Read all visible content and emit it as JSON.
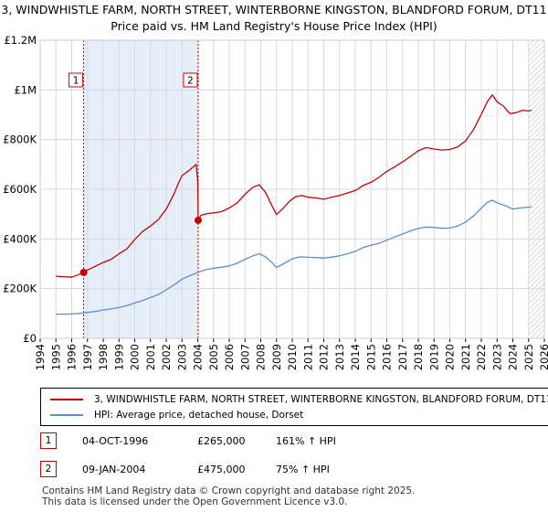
{
  "title_line1": "3, WINDWHISTLE FARM, NORTH STREET, WINTERBORNE KINGSTON, BLANDFORD FORUM, DT11",
  "title_line2": "Price paid vs. HM Land Registry's House Price Index (HPI)",
  "colors": {
    "property": "#cc0000",
    "hpi": "#5b8fc9",
    "shade": "#e6eefa",
    "grid": "#d9d9d9"
  },
  "chart_data": {
    "type": "line",
    "xlim": [
      1994,
      2026
    ],
    "ylim": [
      0,
      1200000
    ],
    "yticks": [
      {
        "value": 0,
        "label": "£0"
      },
      {
        "value": 200000,
        "label": "£200K"
      },
      {
        "value": 400000,
        "label": "£400K"
      },
      {
        "value": 600000,
        "label": "£600K"
      },
      {
        "value": 800000,
        "label": "£800K"
      },
      {
        "value": 1000000,
        "label": "£1M"
      },
      {
        "value": 1200000,
        "label": "£1.2M"
      }
    ],
    "xticks": [
      1994,
      1995,
      1996,
      1997,
      1998,
      1999,
      2000,
      2001,
      2002,
      2003,
      2004,
      2005,
      2006,
      2007,
      2008,
      2009,
      2010,
      2011,
      2012,
      2013,
      2014,
      2015,
      2016,
      2017,
      2018,
      2019,
      2020,
      2021,
      2022,
      2023,
      2024,
      2025,
      2026
    ],
    "shaded_range": [
      1996.76,
      2004.03
    ],
    "hatched_from": 2025.0,
    "series": [
      {
        "name": "3, WINDWHISTLE FARM, NORTH STREET, WINTERBORNE KINGSTON, BLANDFORD FORUM, DT11",
        "color": "#cc0000",
        "points": [
          [
            1995.0,
            250000
          ],
          [
            1995.5,
            248000
          ],
          [
            1996.0,
            246000
          ],
          [
            1996.4,
            255000
          ],
          [
            1996.76,
            265000
          ],
          [
            1997.0,
            275000
          ],
          [
            1997.5,
            290000
          ],
          [
            1998.0,
            305000
          ],
          [
            1998.5,
            318000
          ],
          [
            1999.0,
            340000
          ],
          [
            1999.5,
            360000
          ],
          [
            2000.0,
            398000
          ],
          [
            2000.5,
            430000
          ],
          [
            2001.0,
            452000
          ],
          [
            2001.5,
            478000
          ],
          [
            2002.0,
            520000
          ],
          [
            2002.5,
            582000
          ],
          [
            2002.8,
            628000
          ],
          [
            2003.0,
            655000
          ],
          [
            2003.5,
            678000
          ],
          [
            2003.9,
            700000
          ],
          [
            2004.0,
            632000
          ],
          [
            2004.03,
            475000
          ],
          [
            2004.2,
            495000
          ],
          [
            2004.6,
            502000
          ],
          [
            2005.0,
            505000
          ],
          [
            2005.5,
            510000
          ],
          [
            2006.0,
            525000
          ],
          [
            2006.5,
            545000
          ],
          [
            2007.0,
            580000
          ],
          [
            2007.5,
            608000
          ],
          [
            2007.9,
            618000
          ],
          [
            2008.3,
            588000
          ],
          [
            2008.7,
            535000
          ],
          [
            2009.0,
            498000
          ],
          [
            2009.4,
            522000
          ],
          [
            2009.8,
            550000
          ],
          [
            2010.2,
            570000
          ],
          [
            2010.6,
            575000
          ],
          [
            2011.0,
            568000
          ],
          [
            2011.5,
            565000
          ],
          [
            2012.0,
            560000
          ],
          [
            2012.5,
            568000
          ],
          [
            2013.0,
            575000
          ],
          [
            2013.5,
            585000
          ],
          [
            2014.0,
            595000
          ],
          [
            2014.5,
            615000
          ],
          [
            2015.0,
            628000
          ],
          [
            2015.5,
            648000
          ],
          [
            2016.0,
            672000
          ],
          [
            2016.5,
            690000
          ],
          [
            2017.0,
            710000
          ],
          [
            2017.5,
            732000
          ],
          [
            2018.0,
            755000
          ],
          [
            2018.5,
            768000
          ],
          [
            2019.0,
            762000
          ],
          [
            2019.5,
            758000
          ],
          [
            2020.0,
            760000
          ],
          [
            2020.5,
            770000
          ],
          [
            2021.0,
            795000
          ],
          [
            2021.5,
            840000
          ],
          [
            2022.0,
            902000
          ],
          [
            2022.4,
            955000
          ],
          [
            2022.7,
            980000
          ],
          [
            2023.0,
            952000
          ],
          [
            2023.4,
            935000
          ],
          [
            2023.8,
            905000
          ],
          [
            2024.2,
            908000
          ],
          [
            2024.6,
            918000
          ],
          [
            2025.0,
            915000
          ],
          [
            2025.2,
            918000
          ]
        ]
      },
      {
        "name": "HPI: Average price, detached house, Dorset",
        "color": "#5b8fc9",
        "points": [
          [
            1995.0,
            97000
          ],
          [
            1995.5,
            97000
          ],
          [
            1996.0,
            98000
          ],
          [
            1996.5,
            100000
          ],
          [
            1997.0,
            104000
          ],
          [
            1997.5,
            108000
          ],
          [
            1998.0,
            114000
          ],
          [
            1998.5,
            118000
          ],
          [
            1999.0,
            124000
          ],
          [
            1999.5,
            131000
          ],
          [
            2000.0,
            142000
          ],
          [
            2000.5,
            152000
          ],
          [
            2001.0,
            164000
          ],
          [
            2001.5,
            176000
          ],
          [
            2002.0,
            195000
          ],
          [
            2002.5,
            215000
          ],
          [
            2003.0,
            238000
          ],
          [
            2003.5,
            252000
          ],
          [
            2004.0,
            265000
          ],
          [
            2004.5,
            276000
          ],
          [
            2005.0,
            282000
          ],
          [
            2005.5,
            286000
          ],
          [
            2006.0,
            292000
          ],
          [
            2006.5,
            302000
          ],
          [
            2007.0,
            318000
          ],
          [
            2007.5,
            332000
          ],
          [
            2007.9,
            340000
          ],
          [
            2008.3,
            328000
          ],
          [
            2008.7,
            305000
          ],
          [
            2009.0,
            285000
          ],
          [
            2009.5,
            302000
          ],
          [
            2010.0,
            320000
          ],
          [
            2010.5,
            328000
          ],
          [
            2011.0,
            326000
          ],
          [
            2011.5,
            325000
          ],
          [
            2012.0,
            323000
          ],
          [
            2012.5,
            327000
          ],
          [
            2013.0,
            332000
          ],
          [
            2013.5,
            340000
          ],
          [
            2014.0,
            350000
          ],
          [
            2014.5,
            365000
          ],
          [
            2015.0,
            375000
          ],
          [
            2015.5,
            382000
          ],
          [
            2016.0,
            395000
          ],
          [
            2016.5,
            408000
          ],
          [
            2017.0,
            420000
          ],
          [
            2017.5,
            432000
          ],
          [
            2018.0,
            442000
          ],
          [
            2018.5,
            448000
          ],
          [
            2019.0,
            446000
          ],
          [
            2019.5,
            443000
          ],
          [
            2020.0,
            444000
          ],
          [
            2020.5,
            452000
          ],
          [
            2021.0,
            468000
          ],
          [
            2021.5,
            492000
          ],
          [
            2022.0,
            525000
          ],
          [
            2022.4,
            548000
          ],
          [
            2022.7,
            556000
          ],
          [
            2023.0,
            545000
          ],
          [
            2023.5,
            535000
          ],
          [
            2024.0,
            520000
          ],
          [
            2024.5,
            525000
          ],
          [
            2025.0,
            528000
          ],
          [
            2025.2,
            530000
          ]
        ]
      }
    ],
    "markers": [
      {
        "label": "1",
        "x": 1996.76,
        "y": 265000
      },
      {
        "label": "2",
        "x": 2004.03,
        "y": 475000
      }
    ]
  },
  "legend": {
    "property": "3, WINDWHISTLE FARM, NORTH STREET, WINTERBORNE KINGSTON, BLANDFORD FORUM, DT11",
    "hpi": "HPI: Average price, detached house, Dorset"
  },
  "transactions": [
    {
      "label": "1",
      "date": "04-OCT-1996",
      "price": "£265,000",
      "hpi": "161% ↑ HPI"
    },
    {
      "label": "2",
      "date": "09-JAN-2004",
      "price": "£475,000",
      "hpi": "75% ↑ HPI"
    }
  ],
  "footer": {
    "line1": "Contains HM Land Registry data © Crown copyright and database right 2025.",
    "line2": "This data is licensed under the Open Government Licence v3.0."
  }
}
